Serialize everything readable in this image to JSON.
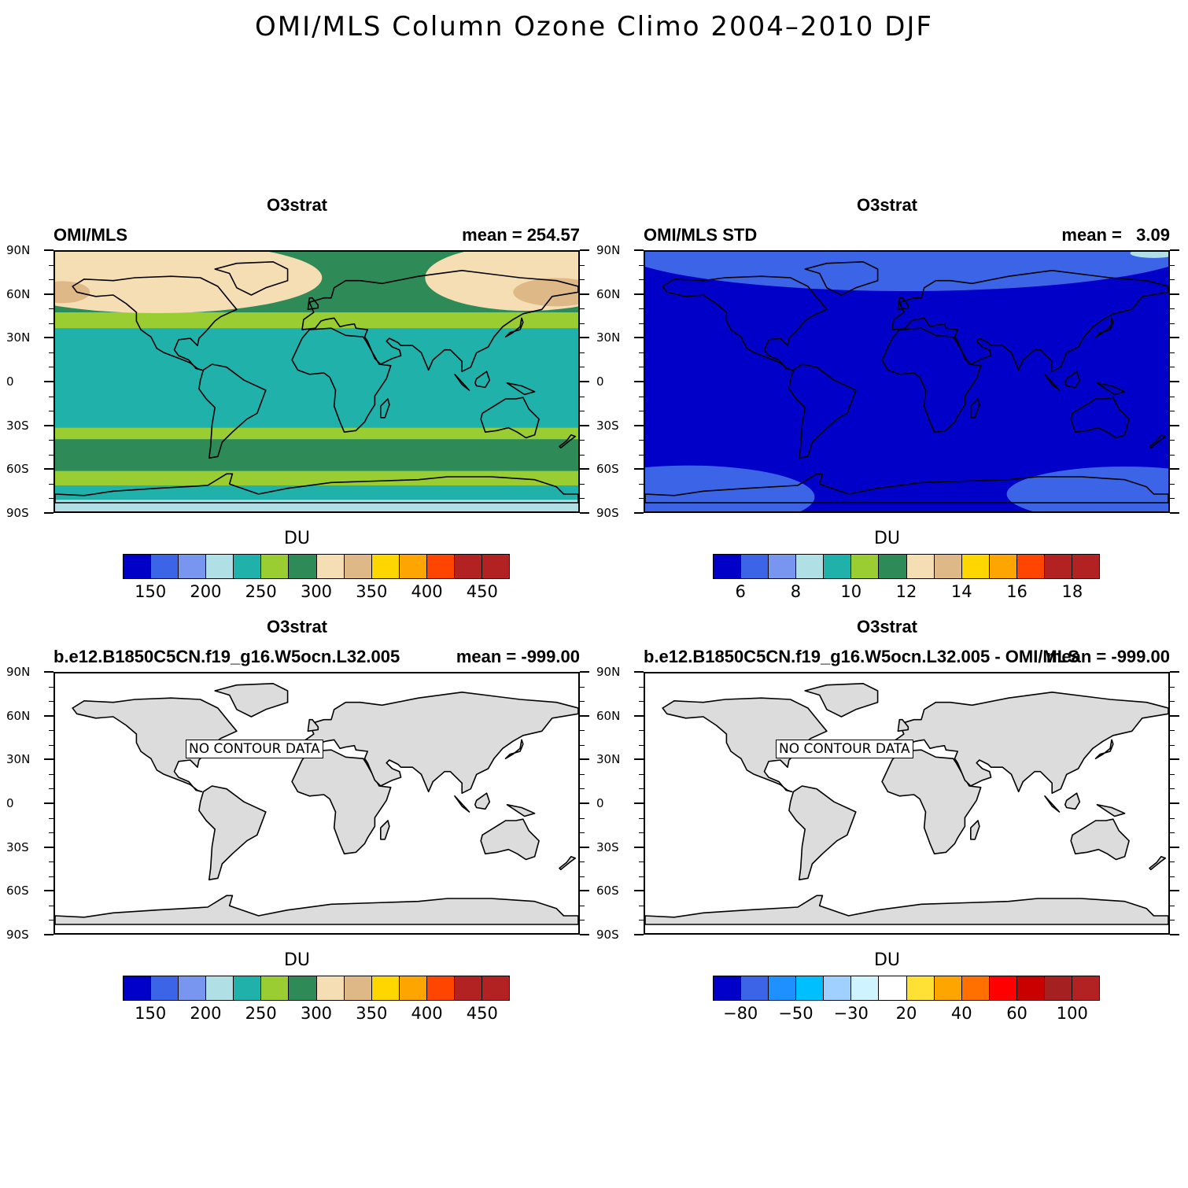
{
  "title": "OMI/MLS Column Ozone Climo 2004–2010 DJF",
  "lat_ticks": [
    "90N",
    "60N",
    "30N",
    "0",
    "30S",
    "60S",
    "90S"
  ],
  "panels": [
    {
      "title": "O3strat",
      "left": "OMI/MLS",
      "right": "mean = 254.57",
      "unit": "DU",
      "colors": [
        "#0000c8",
        "#3c64e6",
        "#7896f0",
        "#b0e0e6",
        "#20b2aa",
        "#9acd32",
        "#2e8b57",
        "#f5deb3",
        "#deb887",
        "#ffd700",
        "#ffa500",
        "#ff4500",
        "#b22222",
        "#b22222"
      ],
      "cbar_labels": [
        "150",
        "200",
        "250",
        "300",
        "350",
        "400",
        "450"
      ],
      "has_data": true,
      "field": "ozone"
    },
    {
      "title": "O3strat",
      "left": "OMI/MLS STD",
      "right": "mean =   3.09",
      "unit": "DU",
      "colors": [
        "#0000c8",
        "#3c64e6",
        "#7896f0",
        "#b0e0e6",
        "#20b2aa",
        "#9acd32",
        "#2e8b57",
        "#f5deb3",
        "#deb887",
        "#ffd700",
        "#ffa500",
        "#ff4500",
        "#b22222",
        "#b22222"
      ],
      "cbar_labels": [
        "6",
        "8",
        "10",
        "12",
        "14",
        "16",
        "18"
      ],
      "has_data": true,
      "field": "std"
    },
    {
      "title": "O3strat",
      "left": "b.e12.B1850C5CN.f19_g16.W5ocn.L32.005",
      "right": "mean = -999.00",
      "unit": "DU",
      "colors": [
        "#0000c8",
        "#3c64e6",
        "#7896f0",
        "#b0e0e6",
        "#20b2aa",
        "#9acd32",
        "#2e8b57",
        "#f5deb3",
        "#deb887",
        "#ffd700",
        "#ffa500",
        "#ff4500",
        "#b22222",
        "#b22222"
      ],
      "cbar_labels": [
        "150",
        "200",
        "250",
        "300",
        "350",
        "400",
        "450"
      ],
      "has_data": false,
      "nodata_text": "NO CONTOUR DATA"
    },
    {
      "title": "O3strat",
      "left": "b.e12.B1850C5CN.f19_g16.W5ocn.L32.005 - OMI/MLS",
      "right": "mean = -999.00",
      "unit": "DU",
      "colors": [
        "#0000c8",
        "#3c64e6",
        "#1e90ff",
        "#00bfff",
        "#a0d0ff",
        "#d0f4ff",
        "#ffffff",
        "#ffe135",
        "#ffa500",
        "#ff7000",
        "#ff0000",
        "#c80000",
        "#a52020",
        "#b22222"
      ],
      "cbar_labels": [
        "−80",
        "−50",
        "−30",
        "20",
        "40",
        "60",
        "100"
      ],
      "has_data": false,
      "nodata_text": "NO CONTOUR DATA"
    }
  ]
}
